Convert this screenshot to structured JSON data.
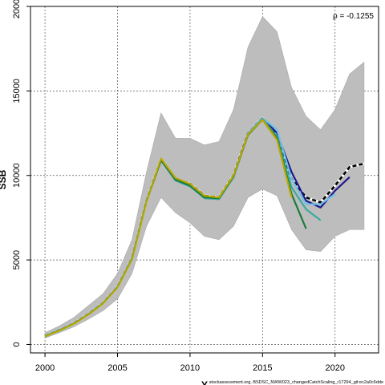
{
  "chart_data": {
    "type": "line",
    "xlabel": "Y",
    "ylabel": "SSB",
    "xlim": [
      1999,
      2023
    ],
    "ylim": [
      -500,
      20000
    ],
    "x_ticks": [
      2000,
      2005,
      2010,
      2015,
      2020
    ],
    "y_ticks": [
      0,
      5000,
      10000,
      15000,
      20000
    ],
    "grid": true,
    "annotation": "ρ = -0.1255",
    "footer": "stockassessment.org, BSDSC_NWW023_changedCatchScaling_r17294_git:ec2a0c6dde",
    "band": {
      "x": [
        2000,
        2001,
        2002,
        2003,
        2004,
        2005,
        2006,
        2007,
        2008,
        2009,
        2010,
        2011,
        2012,
        2013,
        2014,
        2015,
        2016,
        2017,
        2018,
        2019,
        2020,
        2021,
        2022
      ],
      "lower": [
        380,
        700,
        1050,
        1500,
        2000,
        2700,
        4200,
        7000,
        8700,
        7800,
        7200,
        6400,
        6200,
        7000,
        8700,
        9200,
        8800,
        6800,
        5600,
        5500,
        6400,
        6800,
        6800
      ],
      "upper": [
        700,
        1100,
        1600,
        2300,
        3000,
        4200,
        6200,
        10200,
        13700,
        12200,
        12200,
        11800,
        12000,
        13900,
        17600,
        19400,
        18500,
        15200,
        13500,
        12700,
        13900,
        16000,
        16700
      ]
    },
    "series": [
      {
        "color": "#000000",
        "dashed": true,
        "x": [
          2000,
          2001,
          2002,
          2003,
          2004,
          2005,
          2006,
          2007,
          2008,
          2009,
          2010,
          2011,
          2012,
          2013,
          2014,
          2015,
          2016,
          2017,
          2018,
          2019,
          2020,
          2021,
          2022
        ],
        "values": [
          500,
          850,
          1250,
          1800,
          2450,
          3400,
          5100,
          8500,
          10950,
          9800,
          9500,
          8800,
          8700,
          10000,
          12500,
          13400,
          12400,
          9800,
          8700,
          8400,
          9400,
          10500,
          10700
        ]
      },
      {
        "color": "#1f1a8a",
        "x": [
          2000,
          2001,
          2002,
          2003,
          2004,
          2005,
          2006,
          2007,
          2008,
          2009,
          2010,
          2011,
          2012,
          2013,
          2014,
          2015,
          2016,
          2017,
          2018,
          2019,
          2020,
          2021
        ],
        "values": [
          500,
          850,
          1250,
          1800,
          2450,
          3400,
          5100,
          8500,
          10900,
          9800,
          9450,
          8750,
          8650,
          9950,
          12500,
          13400,
          12500,
          10200,
          8500,
          8100,
          9100,
          9900
        ]
      },
      {
        "color": "#6fc0e8",
        "x": [
          2000,
          2001,
          2002,
          2003,
          2004,
          2005,
          2006,
          2007,
          2008,
          2009,
          2010,
          2011,
          2012,
          2013,
          2014,
          2015,
          2016,
          2017,
          2018,
          2019,
          2020
        ],
        "values": [
          500,
          850,
          1250,
          1800,
          2450,
          3400,
          5100,
          8500,
          10900,
          9700,
          9400,
          8700,
          8600,
          9900,
          12500,
          13400,
          12700,
          9800,
          8300,
          8300,
          8900
        ]
      },
      {
        "color": "#3aaaa0",
        "x": [
          2000,
          2001,
          2002,
          2003,
          2004,
          2005,
          2006,
          2007,
          2008,
          2009,
          2010,
          2011,
          2012,
          2013,
          2014,
          2015,
          2016,
          2017,
          2018,
          2019
        ],
        "values": [
          500,
          850,
          1250,
          1800,
          2450,
          3400,
          5100,
          8500,
          10900,
          9700,
          9350,
          8650,
          8600,
          9900,
          12450,
          13350,
          12300,
          9300,
          8000,
          7350
        ]
      },
      {
        "color": "#1e7a3a",
        "x": [
          2000,
          2001,
          2002,
          2003,
          2004,
          2005,
          2006,
          2007,
          2008,
          2009,
          2010,
          2011,
          2012,
          2013,
          2014,
          2015,
          2016,
          2017,
          2018
        ],
        "values": [
          480,
          830,
          1230,
          1780,
          2430,
          3380,
          5050,
          8450,
          10900,
          9750,
          9400,
          8700,
          8650,
          9950,
          12400,
          13300,
          12200,
          8900,
          6850
        ]
      },
      {
        "color": "#b8a800",
        "x": [
          2000,
          2001,
          2002,
          2003,
          2004,
          2005,
          2006,
          2007,
          2008,
          2009,
          2010,
          2011,
          2012,
          2013,
          2014,
          2015,
          2016,
          2017
        ],
        "values": [
          480,
          830,
          1230,
          1780,
          2430,
          3380,
          5050,
          8450,
          11000,
          9850,
          9500,
          8800,
          8700,
          10000,
          12450,
          13300,
          12100,
          8700
        ]
      }
    ]
  }
}
